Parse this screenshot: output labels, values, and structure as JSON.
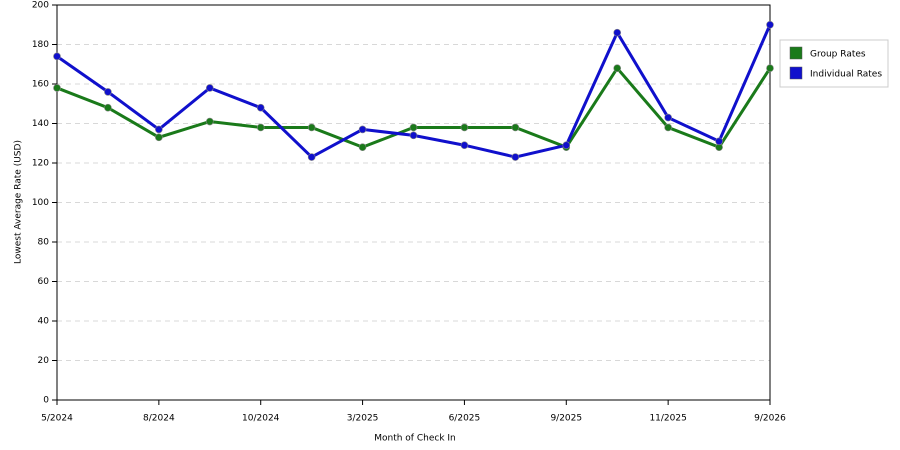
{
  "chart_data": {
    "type": "line",
    "x_label": "Month of Check In",
    "y_label": "Lowest Average Rate (USD)",
    "categories": [
      "5/2024",
      null,
      "8/2024",
      null,
      "10/2024",
      null,
      "3/2025",
      null,
      "6/2025",
      null,
      "9/2025",
      null,
      "11/2025",
      null,
      "9/2026"
    ],
    "series": [
      {
        "name": "Group Rates",
        "color": "#1a7a1a",
        "values": [
          158,
          148,
          133,
          141,
          138,
          138,
          128,
          138,
          138,
          138,
          128,
          168,
          138,
          128,
          168
        ]
      },
      {
        "name": "Individual Rates",
        "color": "#1010cc",
        "values": [
          174,
          156,
          137,
          158,
          148,
          123,
          137,
          134,
          129,
          123,
          129,
          186,
          143,
          131,
          190
        ]
      }
    ],
    "ylim": [
      0,
      200
    ],
    "yticks": [
      0,
      20,
      40,
      60,
      80,
      100,
      120,
      140,
      160,
      180,
      200
    ],
    "grid": true,
    "legend": "right"
  }
}
